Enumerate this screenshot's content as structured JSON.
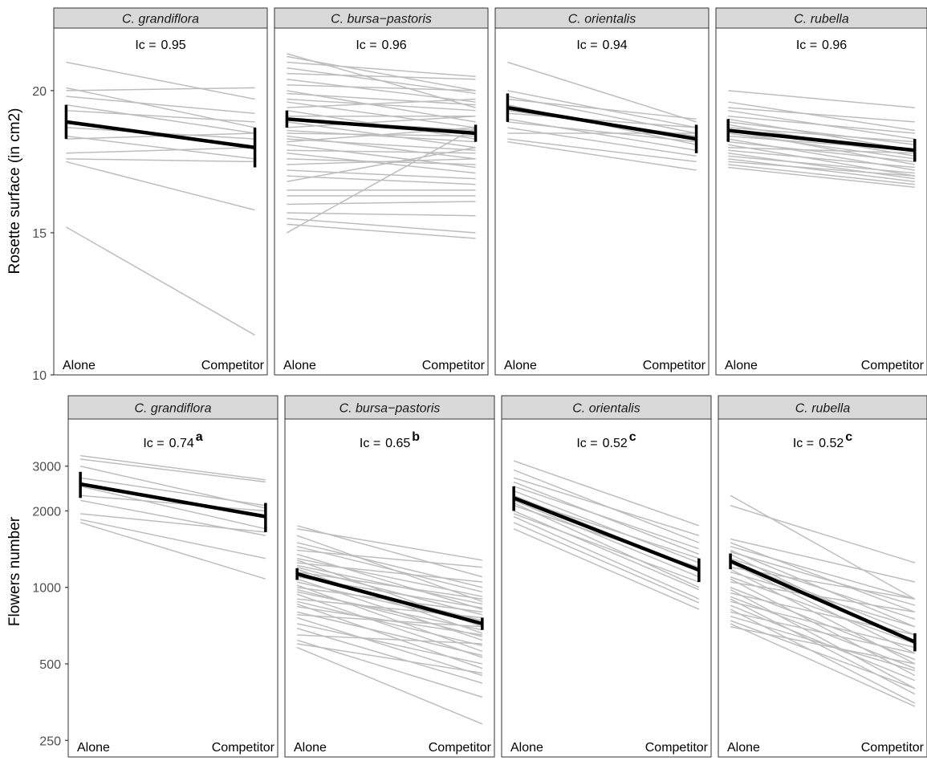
{
  "rows": [
    {
      "ylabel": "Rosette surface (in cm2)",
      "scale": "linear",
      "ylim": [
        10,
        22.2
      ],
      "ticks": [
        {
          "value": 10,
          "label": "10"
        },
        {
          "value": 15,
          "label": "15"
        },
        {
          "value": 20,
          "label": "20"
        }
      ],
      "panels": [
        {
          "title": "C. grandiflora",
          "ic_prefix": "Ic =",
          "ic_value": "0.95",
          "ic_letter": "",
          "x_labels": [
            "Alone",
            "Competitor"
          ],
          "mean": [
            18.9,
            18.0
          ],
          "error": [
            [
              18.3,
              19.5
            ],
            [
              17.3,
              18.7
            ]
          ],
          "lines": [
            [
              21.0,
              19.7
            ],
            [
              20.1,
              18.7
            ],
            [
              20.0,
              20.1
            ],
            [
              19.8,
              19.2
            ],
            [
              19.5,
              18.5
            ],
            [
              19.3,
              18.9
            ],
            [
              18.7,
              18.3
            ],
            [
              18.4,
              17.6
            ],
            [
              18.3,
              18.5
            ],
            [
              17.8,
              18.0
            ],
            [
              17.6,
              17.5
            ],
            [
              17.5,
              15.8
            ],
            [
              15.2,
              11.4
            ]
          ]
        },
        {
          "title": "C. bursa−pastoris",
          "ic_prefix": "Ic =",
          "ic_value": "0.96",
          "ic_letter": "",
          "x_labels": [
            "Alone",
            "Competitor"
          ],
          "mean": [
            19.0,
            18.5
          ],
          "error": [
            [
              18.7,
              19.3
            ],
            [
              18.2,
              18.8
            ]
          ],
          "lines": [
            [
              21.3,
              19.4
            ],
            [
              21.2,
              20.0
            ],
            [
              21.0,
              20.5
            ],
            [
              20.8,
              19.9
            ],
            [
              20.6,
              20.4
            ],
            [
              20.4,
              19.6
            ],
            [
              20.2,
              20.0
            ],
            [
              20.0,
              18.9
            ],
            [
              19.9,
              19.5
            ],
            [
              19.7,
              19.3
            ],
            [
              19.6,
              18.7
            ],
            [
              19.4,
              19.7
            ],
            [
              19.3,
              18.3
            ],
            [
              19.1,
              19.1
            ],
            [
              19.0,
              18.6
            ],
            [
              18.9,
              18.0
            ],
            [
              18.7,
              19.1
            ],
            [
              18.6,
              18.2
            ],
            [
              18.5,
              18.4
            ],
            [
              18.4,
              17.6
            ],
            [
              18.3,
              17.9
            ],
            [
              18.2,
              18.7
            ],
            [
              18.1,
              17.3
            ],
            [
              17.9,
              17.8
            ],
            [
              17.8,
              17.1
            ],
            [
              17.6,
              17.4
            ],
            [
              17.4,
              17.6
            ],
            [
              17.2,
              16.9
            ],
            [
              17.0,
              16.7
            ],
            [
              16.8,
              18.0
            ],
            [
              16.5,
              16.5
            ],
            [
              16.3,
              16.3
            ],
            [
              16.0,
              16.1
            ],
            [
              15.7,
              15.6
            ],
            [
              15.5,
              15.0
            ],
            [
              15.3,
              14.8
            ],
            [
              15.0,
              18.7
            ]
          ]
        },
        {
          "title": "C. orientalis",
          "ic_prefix": "Ic =",
          "ic_value": "0.94",
          "ic_letter": "",
          "x_labels": [
            "Alone",
            "Competitor"
          ],
          "mean": [
            19.4,
            18.3
          ],
          "error": [
            [
              18.9,
              19.9
            ],
            [
              17.8,
              18.8
            ]
          ],
          "lines": [
            [
              21.0,
              18.9
            ],
            [
              20.0,
              18.7
            ],
            [
              19.8,
              18.5
            ],
            [
              19.7,
              19.0
            ],
            [
              19.5,
              18.1
            ],
            [
              19.3,
              18.4
            ],
            [
              19.2,
              18.7
            ],
            [
              19.0,
              17.9
            ],
            [
              18.9,
              18.2
            ],
            [
              18.7,
              17.7
            ],
            [
              18.5,
              18.5
            ],
            [
              18.3,
              17.5
            ],
            [
              18.2,
              17.2
            ]
          ]
        },
        {
          "title": "C. rubella",
          "ic_prefix": "Ic =",
          "ic_value": "0.96",
          "ic_letter": "",
          "x_labels": [
            "Alone",
            "Competitor"
          ],
          "mean": [
            18.6,
            17.9
          ],
          "error": [
            [
              18.2,
              19.0
            ],
            [
              17.5,
              18.3
            ]
          ],
          "lines": [
            [
              20.0,
              19.4
            ],
            [
              19.6,
              18.6
            ],
            [
              19.4,
              18.9
            ],
            [
              19.3,
              18.3
            ],
            [
              19.1,
              18.5
            ],
            [
              19.0,
              17.9
            ],
            [
              18.9,
              18.1
            ],
            [
              18.8,
              17.7
            ],
            [
              18.7,
              18.2
            ],
            [
              18.6,
              17.4
            ],
            [
              18.5,
              17.6
            ],
            [
              18.4,
              17.9
            ],
            [
              18.3,
              17.2
            ],
            [
              18.2,
              17.5
            ],
            [
              18.1,
              17.0
            ],
            [
              18.0,
              17.8
            ],
            [
              17.9,
              17.3
            ],
            [
              17.8,
              16.9
            ],
            [
              17.7,
              17.1
            ],
            [
              17.6,
              16.8
            ],
            [
              17.5,
              17.0
            ],
            [
              17.4,
              16.7
            ],
            [
              17.3,
              16.6
            ]
          ]
        }
      ]
    },
    {
      "ylabel": "Flowers number",
      "scale": "log",
      "ylim": [
        215,
        4600
      ],
      "ticks": [
        {
          "value": 250,
          "label": "250"
        },
        {
          "value": 500,
          "label": "500"
        },
        {
          "value": 1000,
          "label": "1000"
        },
        {
          "value": 2000,
          "label": "2000"
        },
        {
          "value": 3000,
          "label": "3000"
        }
      ],
      "panels": [
        {
          "title": "C. grandiflora",
          "ic_prefix": "Ic =",
          "ic_value": "0.74",
          "ic_letter": "a",
          "x_labels": [
            "Alone",
            "Competitor"
          ],
          "mean": [
            2550,
            1900
          ],
          "error": [
            [
              2250,
              2850
            ],
            [
              1650,
              2150
            ]
          ],
          "lines": [
            [
              3300,
              2650
            ],
            [
              3200,
              2600
            ],
            [
              3000,
              2050
            ],
            [
              2700,
              2100
            ],
            [
              2500,
              1700
            ],
            [
              2300,
              2000
            ],
            [
              2200,
              1600
            ],
            [
              1950,
              1650
            ],
            [
              1850,
              1300
            ],
            [
              1800,
              1080
            ]
          ]
        },
        {
          "title": "C. bursa−pastoris",
          "ic_prefix": "Ic =",
          "ic_value": "0.65",
          "ic_letter": "b",
          "x_labels": [
            "Alone",
            "Competitor"
          ],
          "mean": [
            1130,
            720
          ],
          "error": [
            [
              1070,
              1190
            ],
            [
              680,
              760
            ]
          ],
          "lines": [
            [
              1750,
              1100
            ],
            [
              1700,
              1280
            ],
            [
              1600,
              880
            ],
            [
              1500,
              1000
            ],
            [
              1450,
              960
            ],
            [
              1400,
              1200
            ],
            [
              1350,
              820
            ],
            [
              1300,
              920
            ],
            [
              1280,
              700
            ],
            [
              1250,
              1050
            ],
            [
              1220,
              860
            ],
            [
              1200,
              780
            ],
            [
              1180,
              660
            ],
            [
              1150,
              900
            ],
            [
              1120,
              740
            ],
            [
              1100,
              830
            ],
            [
              1080,
              620
            ],
            [
              1050,
              720
            ],
            [
              1020,
              560
            ],
            [
              1000,
              800
            ],
            [
              980,
              640
            ],
            [
              960,
              680
            ],
            [
              940,
              530
            ],
            [
              900,
              760
            ],
            [
              880,
              590
            ],
            [
              860,
              480
            ],
            [
              840,
              650
            ],
            [
              800,
              540
            ],
            [
              780,
              700
            ],
            [
              760,
              450
            ],
            [
              720,
              500
            ],
            [
              690,
              420
            ],
            [
              650,
              600
            ],
            [
              620,
              370
            ],
            [
              600,
              460
            ],
            [
              580,
              290
            ]
          ]
        },
        {
          "title": "C. orientalis",
          "ic_prefix": "Ic =",
          "ic_value": "0.52",
          "ic_letter": "c",
          "x_labels": [
            "Alone",
            "Competitor"
          ],
          "mean": [
            2250,
            1170
          ],
          "error": [
            [
              2000,
              2500
            ],
            [
              1050,
              1300
            ]
          ],
          "lines": [
            [
              3150,
              1750
            ],
            [
              2900,
              1500
            ],
            [
              2700,
              1600
            ],
            [
              2600,
              1350
            ],
            [
              2500,
              1420
            ],
            [
              2400,
              1250
            ],
            [
              2300,
              1180
            ],
            [
              2250,
              1300
            ],
            [
              2200,
              1100
            ],
            [
              2150,
              1000
            ],
            [
              2100,
              1200
            ],
            [
              2000,
              980
            ],
            [
              1950,
              1050
            ],
            [
              1900,
              900
            ],
            [
              1800,
              870
            ],
            [
              1700,
              820
            ]
          ]
        },
        {
          "title": "C. rubella",
          "ic_prefix": "Ic =",
          "ic_value": "0.52",
          "ic_letter": "c",
          "x_labels": [
            "Alone",
            "Competitor"
          ],
          "mean": [
            1270,
            610
          ],
          "error": [
            [
              1180,
              1360
            ],
            [
              560,
              660
            ]
          ],
          "lines": [
            [
              2300,
              900
            ],
            [
              2100,
              1250
            ],
            [
              1550,
              1050
            ],
            [
              1500,
              800
            ],
            [
              1450,
              900
            ],
            [
              1400,
              700
            ],
            [
              1380,
              850
            ],
            [
              1350,
              600
            ],
            [
              1300,
              750
            ],
            [
              1280,
              650
            ],
            [
              1250,
              550
            ],
            [
              1200,
              900
            ],
            [
              1180,
              500
            ],
            [
              1150,
              700
            ],
            [
              1100,
              600
            ],
            [
              1080,
              450
            ],
            [
              1050,
              800
            ],
            [
              1000,
              520
            ],
            [
              980,
              400
            ],
            [
              950,
              650
            ],
            [
              920,
              480
            ],
            [
              900,
              380
            ],
            [
              880,
              580
            ],
            [
              850,
              430
            ],
            [
              820,
              350
            ],
            [
              800,
              550
            ],
            [
              770,
              470
            ],
            [
              740,
              400
            ],
            [
              720,
              340
            ],
            [
              700,
              500
            ]
          ]
        }
      ]
    }
  ]
}
